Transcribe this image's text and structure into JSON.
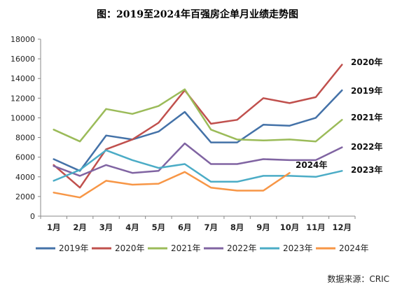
{
  "chart_data": {
    "type": "line",
    "title": "图：2019至2024年百强房企单月业绩走势图",
    "source": "数据来源：CRIC",
    "categories": [
      "1月",
      "2月",
      "3月",
      "4月",
      "5月",
      "6月",
      "7月",
      "8月",
      "9月",
      "10月",
      "11月",
      "12月"
    ],
    "ylim": [
      0,
      18000
    ],
    "yticks": [
      0,
      2000,
      4000,
      6000,
      8000,
      10000,
      12000,
      14000,
      16000,
      18000
    ],
    "grid": false,
    "legend_position": "bottom",
    "series": [
      {
        "name": "2019年",
        "label": "2019年",
        "color": "#4472A8",
        "values": [
          5800,
          4600,
          8200,
          7800,
          8600,
          10600,
          7500,
          7500,
          9300,
          9200,
          10000,
          12800
        ]
      },
      {
        "name": "2020年",
        "label": "2020年",
        "color": "#C0504D",
        "values": [
          5200,
          2900,
          6800,
          7800,
          9500,
          12800,
          9400,
          9800,
          12000,
          11500,
          12100,
          15400
        ]
      },
      {
        "name": "2021年",
        "label": "2021年",
        "color": "#9BBB59",
        "values": [
          8800,
          7600,
          10900,
          10400,
          11200,
          12900,
          8800,
          7800,
          7700,
          7800,
          7600,
          9800
        ]
      },
      {
        "name": "2022年",
        "label": "2022年",
        "color": "#8064A2",
        "values": [
          5100,
          4100,
          5200,
          4400,
          4600,
          7400,
          5300,
          5300,
          5800,
          5700,
          5700,
          7000
        ]
      },
      {
        "name": "2023年",
        "label": "2023年",
        "color": "#4BACC6",
        "values": [
          3600,
          4700,
          6700,
          5700,
          4900,
          5300,
          3500,
          3500,
          4100,
          4100,
          4000,
          4600
        ]
      },
      {
        "name": "2024年",
        "label": "2024年",
        "color": "#F79646",
        "values": [
          2400,
          1900,
          3600,
          3200,
          3300,
          4500,
          2900,
          2600,
          2600,
          4400,
          null,
          null
        ]
      }
    ]
  }
}
